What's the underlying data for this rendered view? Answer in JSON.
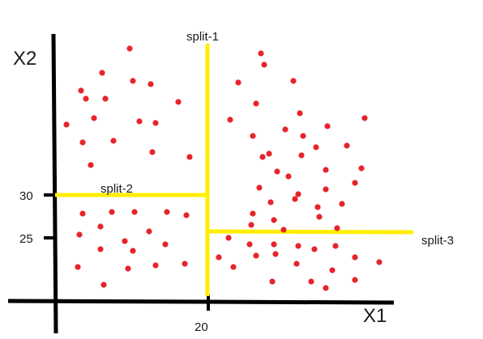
{
  "axes": {
    "x_title": "X1",
    "y_title": "X2",
    "x_tick": "20",
    "y_ticks": [
      "30",
      "25"
    ]
  },
  "splits": {
    "s1": "split-1",
    "s2": "split-2",
    "s3": "split-3"
  },
  "colors": {
    "axis": "#000000",
    "split": "#ffee00",
    "point": "#e8232b"
  },
  "points": [
    [
      160,
      60
    ],
    [
      126,
      90
    ],
    [
      164,
      100
    ],
    [
      186,
      104
    ],
    [
      100,
      112
    ],
    [
      106,
      122
    ],
    [
      130,
      122
    ],
    [
      82,
      154
    ],
    [
      116,
      146
    ],
    [
      172,
      150
    ],
    [
      192,
      152
    ],
    [
      220,
      126
    ],
    [
      102,
      176
    ],
    [
      140,
      174
    ],
    [
      112,
      204
    ],
    [
      188,
      188
    ],
    [
      234,
      194
    ],
    [
      322,
      66
    ],
    [
      326,
      80
    ],
    [
      294,
      102
    ],
    [
      362,
      100
    ],
    [
      316,
      128
    ],
    [
      284,
      148
    ],
    [
      370,
      140
    ],
    [
      352,
      160
    ],
    [
      312,
      168
    ],
    [
      374,
      168
    ],
    [
      404,
      156
    ],
    [
      450,
      146
    ],
    [
      324,
      194
    ],
    [
      332,
      190
    ],
    [
      372,
      192
    ],
    [
      390,
      182
    ],
    [
      428,
      180
    ],
    [
      342,
      212
    ],
    [
      356,
      218
    ],
    [
      402,
      210
    ],
    [
      446,
      208
    ],
    [
      320,
      232
    ],
    [
      368,
      240
    ],
    [
      364,
      246
    ],
    [
      402,
      234
    ],
    [
      438,
      226
    ],
    [
      422,
      252
    ],
    [
      334,
      250
    ],
    [
      392,
      256
    ],
    [
      102,
      264
    ],
    [
      138,
      262
    ],
    [
      166,
      262
    ],
    [
      206,
      262
    ],
    [
      230,
      266
    ],
    [
      124,
      280
    ],
    [
      184,
      286
    ],
    [
      98,
      290
    ],
    [
      154,
      298
    ],
    [
      204,
      302
    ],
    [
      124,
      308
    ],
    [
      164,
      310
    ],
    [
      96,
      330
    ],
    [
      128,
      352
    ],
    [
      158,
      332
    ],
    [
      192,
      328
    ],
    [
      228,
      326
    ],
    [
      312,
      264
    ],
    [
      310,
      278
    ],
    [
      338,
      272
    ],
    [
      350,
      284
    ],
    [
      394,
      268
    ],
    [
      416,
      282
    ],
    [
      282,
      294
    ],
    [
      308,
      302
    ],
    [
      338,
      302
    ],
    [
      368,
      304
    ],
    [
      414,
      304
    ],
    [
      270,
      318
    ],
    [
      288,
      330
    ],
    [
      316,
      316
    ],
    [
      340,
      314
    ],
    [
      388,
      308
    ],
    [
      438,
      318
    ],
    [
      468,
      324
    ],
    [
      366,
      326
    ],
    [
      410,
      334
    ],
    [
      336,
      348
    ],
    [
      384,
      348
    ],
    [
      402,
      356
    ],
    [
      438,
      346
    ]
  ]
}
